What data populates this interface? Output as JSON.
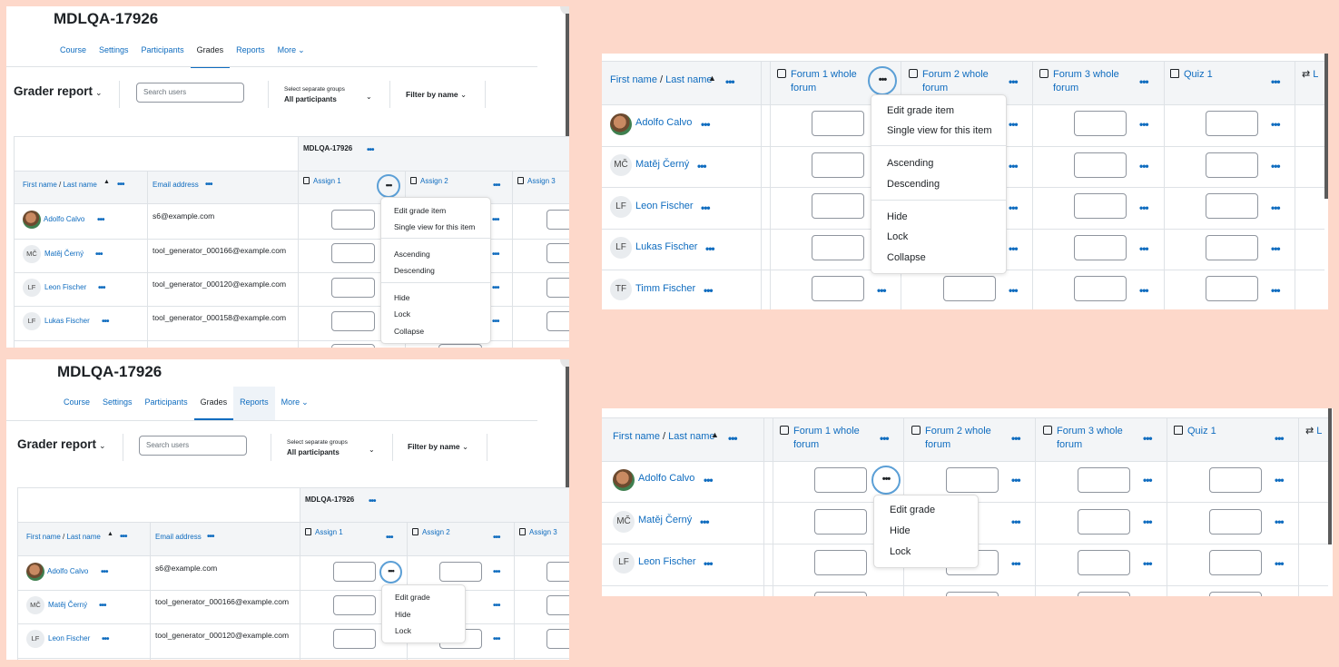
{
  "course": {
    "title": "MDLQA-17926",
    "nav": [
      "Course",
      "Settings",
      "Participants",
      "Grades",
      "Reports",
      "More"
    ],
    "more_chevron": "⌄"
  },
  "grader": {
    "title": "Grader report",
    "search_placeholder": "Search users",
    "groups_label": "Select separate groups",
    "groups_value": "All participants",
    "filter": "Filter by name",
    "course_header": "MDLQA-17926",
    "name_header": "First name / Last name",
    "first_name": "First name",
    "separator": " / ",
    "last_name": "Last name",
    "email_header": "Email address",
    "columns": [
      "Assign 1",
      "Assign 2",
      "Assign 3"
    ]
  },
  "users": [
    {
      "initials": "",
      "name": "Adolfo Calvo",
      "email": "s6@example.com"
    },
    {
      "initials": "MČ",
      "name": "Matěj Černý",
      "email": "tool_generator_000166@example.com"
    },
    {
      "initials": "LF",
      "name": "Leon Fischer",
      "email": "tool_generator_000120@example.com"
    },
    {
      "initials": "LF",
      "name": "Lukas Fischer",
      "email": "tool_generator_000158@example.com"
    },
    {
      "initials": "TF",
      "name": "Timm Fischer",
      "email": ""
    }
  ],
  "column_menu": [
    "Edit grade item",
    "Single view for this item",
    "Ascending",
    "Descending",
    "Hide",
    "Lock",
    "Collapse"
  ],
  "cell_menu": [
    "Edit grade",
    "Hide",
    "Lock"
  ],
  "zoom_columns": [
    {
      "line1": "Forum 1 whole",
      "line2": "forum"
    },
    {
      "line1": "Forum 2 whole",
      "line2": "forum"
    },
    {
      "line1": "Forum 3 whole",
      "line2": "forum"
    },
    {
      "line1": "Quiz 1",
      "line2": ""
    }
  ],
  "zoom_cutoff_label": "L",
  "dots": "•••",
  "colors": {
    "background": "#fdd8ca",
    "link": "#0f6cbf",
    "focus_ring": "#5b9fd6"
  }
}
